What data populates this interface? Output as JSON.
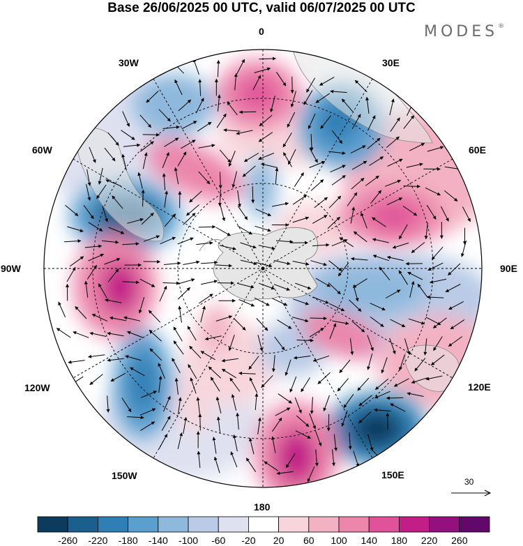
{
  "title": "Base 26/06/2025 00 UTC, valid 06/07/2025 00 UTC",
  "brand": "MODES",
  "brand_mark": "®",
  "longitude_labels": {
    "lon_0": "0",
    "lon_30e": "30E",
    "lon_60e": "60E",
    "lon_90e": "90E",
    "lon_120e": "120E",
    "lon_150e": "150E",
    "lon_180": "180",
    "lon_150w": "150W",
    "lon_120w": "120W",
    "lon_90w": "90W",
    "lon_60w": "60W",
    "lon_30w": "30W"
  },
  "reference_vector": {
    "value": "30"
  },
  "colorbar": {
    "colors": [
      "#0d3b5e",
      "#1a5f8e",
      "#2f7fb5",
      "#5b9fcf",
      "#8eb8dc",
      "#b9cbe6",
      "#dfe1f0",
      "#ffffff",
      "#f8d5dc",
      "#f3b2c4",
      "#ec86ab",
      "#e0529a",
      "#c21e87",
      "#93107e",
      "#63086b"
    ],
    "ticks": [
      "-260",
      "-220",
      "-180",
      "-140",
      "-100",
      "-60",
      "-20",
      "20",
      "60",
      "100",
      "140",
      "180",
      "220",
      "260"
    ]
  },
  "colors": {
    "land": "#e6e6e6",
    "coast": "#7a7a7a",
    "grid": "#000000",
    "vector": "#000000"
  }
}
